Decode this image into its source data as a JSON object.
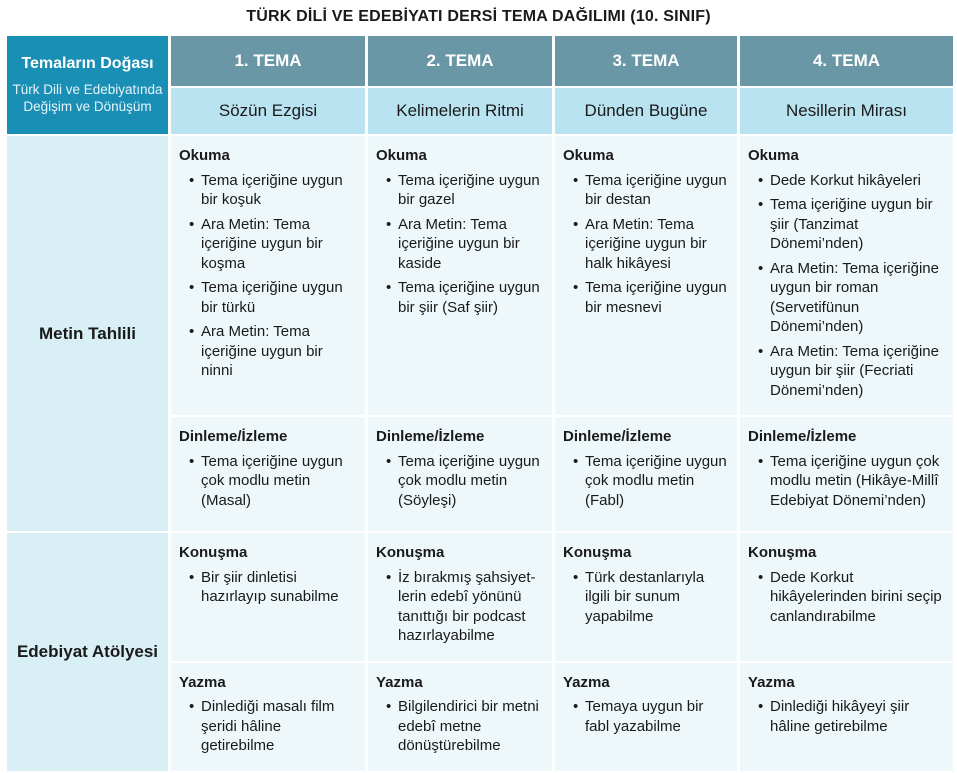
{
  "title": "TÜRK DİLİ VE EDEBİYATI DERSİ TEMA DAĞILIMI (10. SINIF)",
  "corner": {
    "heading": "Temaların Doğası",
    "sub": "Türk Dili ve Edebiyatında Değişim ve Dönüşüm"
  },
  "temas": [
    "1. TEMA",
    "2. TEMA",
    "3. TEMA",
    "4. TEMA"
  ],
  "themes": [
    "Sözün Ezgisi",
    "Kelimelerin Ritmi",
    "Dünden Bugüne",
    "Nesillerin Mirası"
  ],
  "groups": [
    "Metin Tahlili",
    "Edebiyat Atölyesi"
  ],
  "sections": {
    "okuma": "Okuma",
    "dinleme": "Dinleme/İzleme",
    "konusma": "Konuşma",
    "yazma": "Yazma"
  },
  "bullet": "•",
  "cells": {
    "okuma": [
      [
        "Tema içeriğine uygun bir koşuk",
        "Ara Metin: Tema içeriğine uygun bir koşma",
        "Tema içeriğine uygun bir türkü",
        "Ara Metin: Tema içeriğine uygun bir ninni"
      ],
      [
        "Tema içeriğine uygun bir gazel",
        "Ara Metin: Tema içeriğine uygun bir kaside",
        "Tema içeriğine uygun bir şiir (Saf şiir)"
      ],
      [
        "Tema içeriğine uygun bir destan",
        "Ara Metin: Tema içeriğine uygun bir halk hikâyesi",
        "Tema içeriğine uygun bir mesnevi"
      ],
      [
        "Dede Korkut hikâyeleri",
        "Tema içeriğine uygun bir şiir (Tanzimat Dönemi’nden)",
        "Ara Metin: Tema içeriğine uygun bir roman (Servetifünun Dönemi’nden)",
        "Ara Metin: Tema içeriğine uygun bir şiir (Fecriati Dönemi’nden)"
      ]
    ],
    "dinleme": [
      [
        "Tema içeriğine uygun çok modlu metin (Masal)"
      ],
      [
        "Tema içeriğine uygun çok modlu metin (Söyleşi)"
      ],
      [
        "Tema içeriğine uygun çok modlu metin (Fabl)"
      ],
      [
        "Tema içeriğine uygun çok modlu metin (Hikâye-Millî Edebiyat Dönemi’nden)"
      ]
    ],
    "konusma": [
      [
        "Bir şiir dinletisi hazırlayıp sunabilme"
      ],
      [
        "İz bırakmış şahsiyet-lerin edebî yönünü tanıttığı bir podcast hazırlayabilme"
      ],
      [
        "Türk destanlarıyla ilgili bir sunum yapabilme"
      ],
      [
        "Dede Korkut hikâyelerinden birini seçip canlandırabilme"
      ]
    ],
    "yazma": [
      [
        "Dinlediği masalı film şeridi hâline getirebilme"
      ],
      [
        "Bilgilendirici bir metni edebî metne dönüştürebilme"
      ],
      [
        "Temaya uygun bir fabl yazabilme"
      ],
      [
        "Dinlediği hikâyeyi şiir hâline getirebilme"
      ]
    ]
  },
  "colors": {
    "corner_bg": "#1a8fb5",
    "tema_bg": "#6a97a6",
    "theme_bg": "#b9e3f1",
    "rowhead_bg": "#d9eff6",
    "cell_bg": "#eef7fa"
  }
}
